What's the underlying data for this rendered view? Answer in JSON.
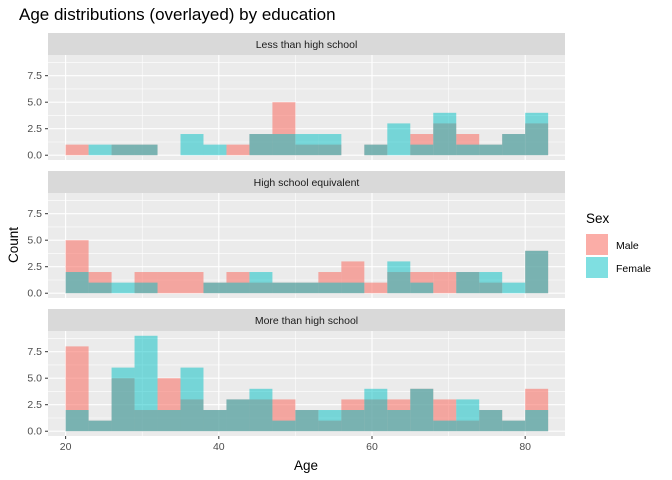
{
  "chart_data": {
    "type": "bar",
    "title": "Age distributions (overlayed) by education",
    "xlabel": "Age",
    "ylabel": "Count",
    "xlim": [
      17.7,
      85.2
    ],
    "ylim": [
      -0.45,
      9.45
    ],
    "x_ticks": [
      20,
      40,
      60,
      80
    ],
    "x_tick_labels": [
      "20",
      "40",
      "60",
      "80"
    ],
    "y_ticks": [
      0,
      2.5,
      5,
      7.5
    ],
    "y_tick_labels": [
      "0.0",
      "2.5",
      "5.0",
      "7.5"
    ],
    "grid": true,
    "legend_position": "right",
    "bin_starts": [
      20,
      23,
      26,
      29,
      32,
      35,
      38,
      41,
      44,
      47,
      50,
      53,
      56,
      59,
      62,
      65,
      68,
      71,
      74,
      77,
      80
    ],
    "bin_width": 3,
    "legend": {
      "title": "Sex",
      "items": [
        {
          "label": "Male",
          "color": "#F8766D"
        },
        {
          "label": "Female",
          "color": "#00BFC4"
        }
      ]
    },
    "facets": [
      {
        "label": "Less than high school",
        "series": [
          {
            "name": "Male",
            "color": "#F8766D",
            "values": [
              1,
              0,
              1,
              1,
              0,
              0,
              0,
              1,
              2,
              5,
              1,
              1,
              0,
              1,
              0,
              2,
              3,
              2,
              1,
              2,
              3
            ]
          },
          {
            "name": "Female",
            "color": "#00BFC4",
            "values": [
              0,
              1,
              1,
              1,
              0,
              2,
              1,
              0,
              2,
              2,
              2,
              2,
              0,
              1,
              3,
              1,
              4,
              1,
              1,
              2,
              4
            ]
          }
        ]
      },
      {
        "label": "High school equivalent",
        "series": [
          {
            "name": "Male",
            "color": "#F8766D",
            "values": [
              5,
              2,
              0,
              2,
              2,
              2,
              1,
              2,
              1,
              1,
              1,
              2,
              3,
              1,
              2,
              2,
              2,
              2,
              1,
              0,
              4
            ]
          },
          {
            "name": "Female",
            "color": "#00BFC4",
            "values": [
              2,
              1,
              1,
              1,
              0,
              0,
              1,
              1,
              2,
              1,
              1,
              1,
              1,
              0,
              3,
              1,
              0,
              2,
              2,
              1,
              4
            ]
          }
        ]
      },
      {
        "label": "More than high school",
        "series": [
          {
            "name": "Male",
            "color": "#F8766D",
            "values": [
              8,
              1,
              5,
              2,
              5,
              3,
              2,
              3,
              3,
              3,
              2,
              1,
              3,
              3,
              3,
              4,
              3,
              1,
              2,
              1,
              4
            ]
          },
          {
            "name": "Female",
            "color": "#00BFC4",
            "values": [
              2,
              1,
              6,
              9,
              2,
              6,
              2,
              3,
              4,
              1,
              2,
              2,
              2,
              4,
              2,
              4,
              1,
              3,
              2,
              1,
              2
            ]
          }
        ]
      }
    ]
  }
}
